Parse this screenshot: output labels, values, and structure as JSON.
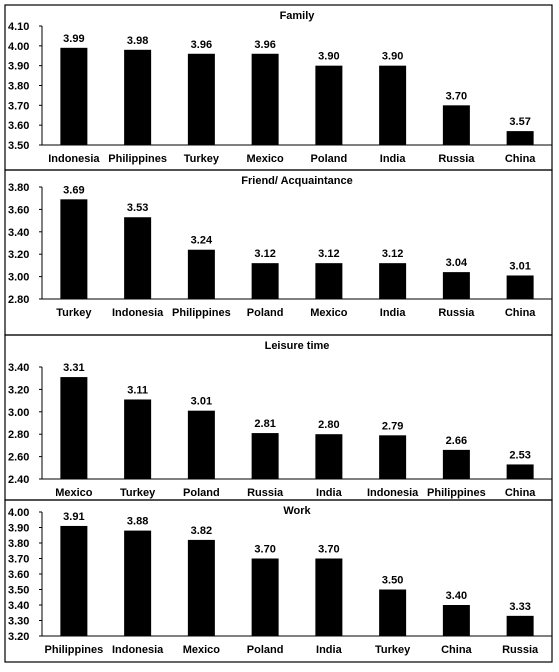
{
  "colors": {
    "bar": "#000000",
    "background": "#ffffff"
  },
  "chart_data": [
    {
      "type": "bar",
      "title": "Family",
      "categories": [
        "Indonesia",
        "Philippines",
        "Turkey",
        "Mexico",
        "Poland",
        "India",
        "Russia",
        "China"
      ],
      "values": [
        3.99,
        3.98,
        3.96,
        3.96,
        3.9,
        3.9,
        3.7,
        3.57
      ],
      "value_labels": [
        "3.99",
        "3.98",
        "3.96",
        "3.96",
        "3.90",
        "3.90",
        "3.70",
        "3.57"
      ],
      "ylim": [
        3.5,
        4.1
      ],
      "yticks": [
        "4.10",
        "4.00",
        "3.90",
        "3.80",
        "3.70",
        "3.60",
        "3.50"
      ],
      "grid": false
    },
    {
      "type": "bar",
      "title": "Friend/ Acquaintance",
      "categories": [
        "Turkey",
        "Indonesia",
        "Philippines",
        "Poland",
        "Mexico",
        "India",
        "Russia",
        "China"
      ],
      "values": [
        3.69,
        3.53,
        3.24,
        3.12,
        3.12,
        3.12,
        3.04,
        3.01
      ],
      "value_labels": [
        "3.69",
        "3.53",
        "3.24",
        "3.12",
        "3.12",
        "3.12",
        "3.04",
        "3.01"
      ],
      "ylim": [
        2.8,
        3.8
      ],
      "yticks": [
        "3.80",
        "3.60",
        "3.40",
        "3.20",
        "3.00",
        "2.80"
      ],
      "grid": false
    },
    {
      "type": "bar",
      "title": "Leisure time",
      "categories": [
        "Mexico",
        "Turkey",
        "Poland",
        "Russia",
        "India",
        "Indonesia",
        "Philippines",
        "China"
      ],
      "values": [
        3.31,
        3.11,
        3.01,
        2.81,
        2.8,
        2.79,
        2.66,
        2.53
      ],
      "value_labels": [
        "3.31",
        "3.11",
        "3.01",
        "2.81",
        "2.80",
        "2.79",
        "2.66",
        "2.53"
      ],
      "ylim": [
        2.4,
        3.4
      ],
      "yticks": [
        "3.40",
        "3.20",
        "3.00",
        "2.80",
        "2.60",
        "2.40"
      ],
      "grid": false
    },
    {
      "type": "bar",
      "title": "Work",
      "categories": [
        "Philippines",
        "Indonesia",
        "Mexico",
        "Poland",
        "India",
        "Turkey",
        "China",
        "Russia"
      ],
      "values": [
        3.91,
        3.88,
        3.82,
        3.7,
        3.7,
        3.5,
        3.4,
        3.33
      ],
      "value_labels": [
        "3.91",
        "3.88",
        "3.82",
        "3.70",
        "3.70",
        "3.50",
        "3.40",
        "3.33"
      ],
      "ylim": [
        3.2,
        4.0
      ],
      "yticks": [
        "4.00",
        "3.90",
        "3.80",
        "3.70",
        "3.60",
        "3.50",
        "3.40",
        "3.30",
        "3.20"
      ],
      "grid": false
    }
  ]
}
